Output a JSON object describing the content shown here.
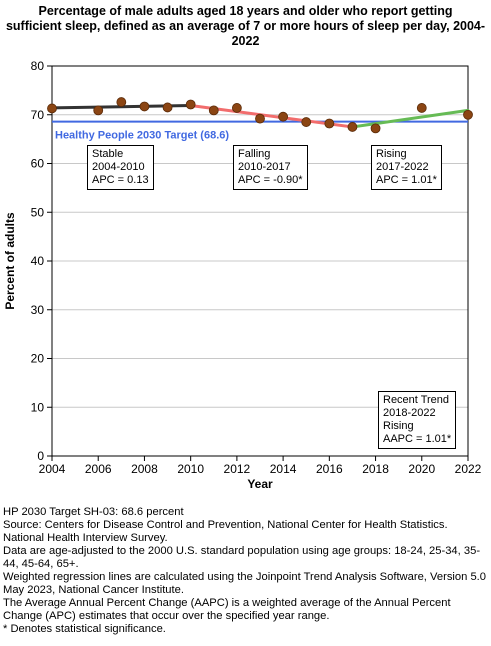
{
  "title_lines": [
    "Percentage of male adults aged 18 years and older who report getting",
    "sufficient sleep, defined as an average of 7 or more hours of sleep per day, 2004-",
    "2022"
  ],
  "chart_data": {
    "type": "scatter",
    "xlabel": "Year",
    "ylabel": "Percent of adults",
    "xlim": [
      2004,
      2022
    ],
    "ylim": [
      0,
      80
    ],
    "x_ticks": [
      2004,
      2006,
      2008,
      2010,
      2012,
      2014,
      2016,
      2018,
      2020,
      2022
    ],
    "y_ticks": [
      0,
      10,
      20,
      30,
      40,
      50,
      60,
      70,
      80
    ],
    "grid": "horizontal",
    "points": {
      "x": [
        2004,
        2006,
        2007,
        2008,
        2009,
        2010,
        2011,
        2012,
        2013,
        2014,
        2015,
        2016,
        2017,
        2018,
        2020,
        2022
      ],
      "y": [
        71.3,
        70.9,
        72.6,
        71.7,
        71.5,
        72.1,
        70.9,
        71.4,
        69.2,
        69.6,
        68.5,
        68.2,
        67.5,
        67.2,
        71.4,
        70.0
      ],
      "color": "#8B4513"
    },
    "target": {
      "label": "Healthy People 2030 Target (68.6)",
      "value": 68.6,
      "color": "#4169E1"
    },
    "trend_segments": [
      {
        "x": [
          2004,
          2010
        ],
        "y": [
          71.4,
          71.9
        ],
        "color": "#333333"
      },
      {
        "x": [
          2010,
          2017
        ],
        "y": [
          71.9,
          67.5
        ],
        "color": "#F26D6D"
      },
      {
        "x": [
          2017,
          2022
        ],
        "y": [
          67.5,
          70.9
        ],
        "color": "#66BB55"
      }
    ],
    "annotations": [
      {
        "lines": [
          "Stable",
          "2004-2010",
          "APC =  0.13"
        ]
      },
      {
        "lines": [
          "Falling",
          "2010-2017",
          "APC = -0.90*"
        ]
      },
      {
        "lines": [
          "Rising",
          "2017-2022",
          "APC =  1.01*"
        ]
      },
      {
        "lines": [
          "Recent Trend",
          "2018-2022",
          "Rising",
          "AAPC =  1.01*"
        ]
      }
    ]
  },
  "notes": [
    "HP 2030 Target SH-03: 68.6 percent",
    "Source: Centers for Disease Control and Prevention, National Center for Health Statistics. National Health Interview Survey.",
    "Data are age-adjusted to the 2000 U.S. standard population using age groups: 18-24, 25-34, 35-44, 45-64, 65+.",
    "Weighted regression lines are calculated using the Joinpoint Trend Analysis Software, Version 5.0 May 2023, National Cancer Institute.",
    "The Average Annual Percent Change (AAPC) is a weighted average of the Annual Percent Change (APC) estimates that occur over the specified year range.",
    "* Denotes statistical significance."
  ]
}
